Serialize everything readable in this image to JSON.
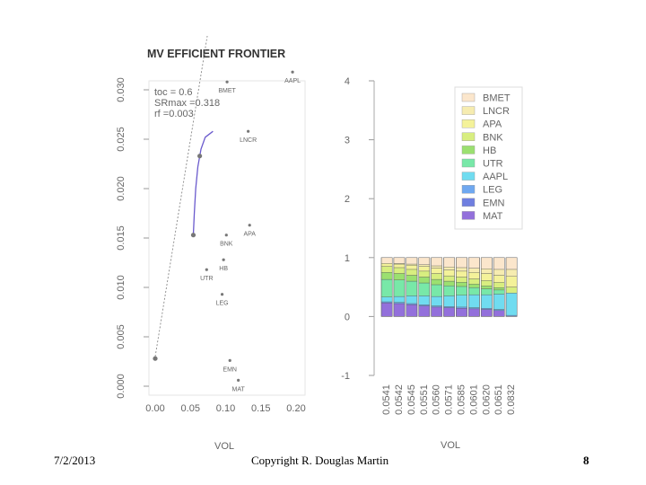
{
  "footer": {
    "date": "7/2/2013",
    "copyright": "Copyright R. Douglas Martin",
    "page": "8"
  },
  "chart_data": [
    {
      "type": "scatter",
      "title": "MV EFFICIENT FRONTIER",
      "xlabel": "VOL",
      "ylabel": "",
      "xlim": [
        0.0,
        0.2
      ],
      "ylim": [
        0.0,
        0.03
      ],
      "x_ticks": [
        "0.00",
        "0.05",
        "0.10",
        "0.15",
        "0.20"
      ],
      "y_ticks": [
        "0.000",
        "0.005",
        "0.010",
        "0.015",
        "0.020",
        "0.025",
        "0.030"
      ],
      "annotations": [
        "toc = 0.6",
        "SRmax =0.318",
        "rf =0.003"
      ],
      "assets": [
        {
          "name": "AAPL",
          "x": 0.195,
          "y": 0.0318
        },
        {
          "name": "BMET",
          "x": 0.102,
          "y": 0.0308
        },
        {
          "name": "LNCR",
          "x": 0.132,
          "y": 0.0258
        },
        {
          "name": "APA",
          "x": 0.134,
          "y": 0.0163
        },
        {
          "name": "BNK",
          "x": 0.101,
          "y": 0.0153
        },
        {
          "name": "HB",
          "x": 0.097,
          "y": 0.0128
        },
        {
          "name": "UTR",
          "x": 0.073,
          "y": 0.0118
        },
        {
          "name": "LEG",
          "x": 0.095,
          "y": 0.0093
        },
        {
          "name": "EMN",
          "x": 0.106,
          "y": 0.0026
        },
        {
          "name": "MAT",
          "x": 0.118,
          "y": 0.0006
        }
      ],
      "frontier": [
        {
          "x": 0.0541,
          "y": 0.0153
        },
        {
          "x": 0.0555,
          "y": 0.0175
        },
        {
          "x": 0.0575,
          "y": 0.02
        },
        {
          "x": 0.0605,
          "y": 0.0222
        },
        {
          "x": 0.065,
          "y": 0.024
        },
        {
          "x": 0.071,
          "y": 0.0252
        },
        {
          "x": 0.082,
          "y": 0.0258
        }
      ],
      "special_points": [
        {
          "x": 0.0,
          "y": 0.0028
        },
        {
          "x": 0.0541,
          "y": 0.0153
        },
        {
          "x": 0.0632,
          "y": 0.0233
        }
      ],
      "tangent_line": [
        {
          "x": 0.0,
          "y": 0.003
        },
        {
          "x": 0.082,
          "y": 0.039
        }
      ],
      "colors": {
        "points": "#777777",
        "frontier": "#6a5acd",
        "tangent": "#888888"
      }
    },
    {
      "type": "bar",
      "subtype": "stacked",
      "xlabel": "VOL",
      "ylim": [
        -1,
        4
      ],
      "y_ticks": [
        "-1",
        "0",
        "1",
        "2",
        "3",
        "4"
      ],
      "categories": [
        "0.0541",
        "0.0542",
        "0.0545",
        "0.0551",
        "0.0560",
        "0.0571",
        "0.0585",
        "0.0601",
        "0.0620",
        "0.0651",
        "0.0832"
      ],
      "series": [
        {
          "name": "MAT",
          "color": "#9370db",
          "values": [
            0.23,
            0.22,
            0.2,
            0.18,
            0.16,
            0.15,
            0.14,
            0.13,
            0.12,
            0.1,
            0.0
          ]
        },
        {
          "name": "EMN",
          "color": "#6f7fe0",
          "values": [
            0.0,
            0.0,
            0.0,
            0.0,
            0.0,
            0.0,
            0.0,
            0.0,
            0.0,
            0.0,
            0.0
          ]
        },
        {
          "name": "LEG",
          "color": "#6fa8f0",
          "values": [
            0.02,
            0.02,
            0.02,
            0.02,
            0.02,
            0.02,
            0.02,
            0.02,
            0.02,
            0.02,
            0.02
          ]
        },
        {
          "name": "AAPL",
          "color": "#70dcf0",
          "values": [
            0.08,
            0.1,
            0.13,
            0.15,
            0.16,
            0.18,
            0.2,
            0.22,
            0.23,
            0.26,
            0.38
          ]
        },
        {
          "name": "UTR",
          "color": "#78e8a8",
          "values": [
            0.3,
            0.28,
            0.25,
            0.22,
            0.2,
            0.17,
            0.15,
            0.12,
            0.1,
            0.07,
            0.0
          ]
        },
        {
          "name": "HB",
          "color": "#9be070",
          "values": [
            0.12,
            0.11,
            0.1,
            0.1,
            0.09,
            0.08,
            0.07,
            0.06,
            0.05,
            0.04,
            0.0
          ]
        },
        {
          "name": "BNK",
          "color": "#d8ee80",
          "values": [
            0.1,
            0.1,
            0.1,
            0.1,
            0.1,
            0.09,
            0.09,
            0.09,
            0.09,
            0.09,
            0.1
          ]
        },
        {
          "name": "APA",
          "color": "#f4f29a",
          "values": [
            0.05,
            0.06,
            0.07,
            0.08,
            0.09,
            0.1,
            0.1,
            0.11,
            0.12,
            0.12,
            0.18
          ]
        },
        {
          "name": "LNCR",
          "color": "#f6ecb0",
          "values": [
            0.0,
            0.01,
            0.02,
            0.03,
            0.04,
            0.05,
            0.06,
            0.07,
            0.08,
            0.1,
            0.12
          ]
        },
        {
          "name": "BMET",
          "color": "#fbe6cc",
          "values": [
            0.1,
            0.1,
            0.11,
            0.12,
            0.14,
            0.16,
            0.17,
            0.18,
            0.19,
            0.2,
            0.2
          ]
        }
      ],
      "legend_order": [
        "BMET",
        "LNCR",
        "APA",
        "BNK",
        "HB",
        "UTR",
        "AAPL",
        "LEG",
        "EMN",
        "MAT"
      ],
      "legend_position": "top-right"
    }
  ]
}
